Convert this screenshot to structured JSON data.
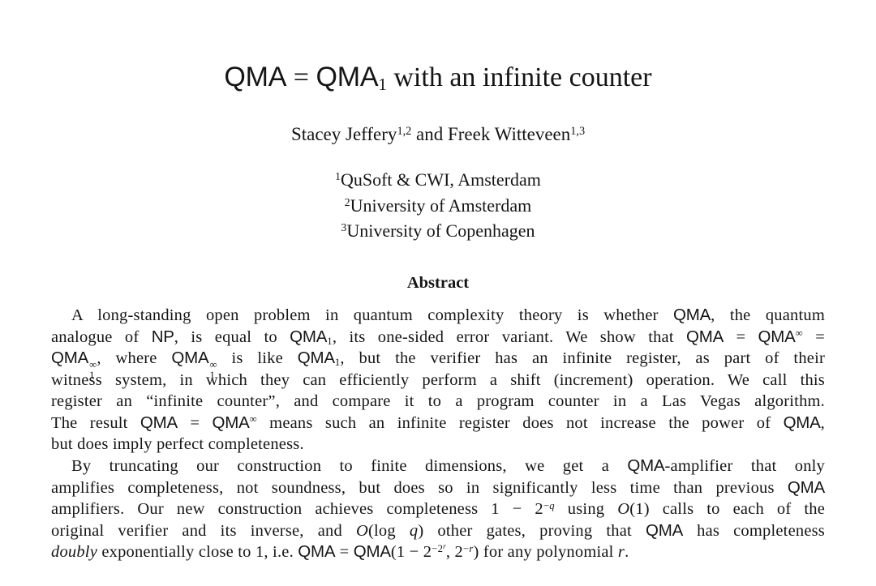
{
  "page": {
    "background": "#ffffff",
    "text_color": "#151515"
  },
  "title": {
    "segments": [
      {
        "t": "QMA",
        "s": "sf"
      },
      {
        "t": " = "
      },
      {
        "t": "QMA",
        "s": "sf"
      },
      {
        "t": "1",
        "s": "sub"
      },
      {
        "t": " with an infinite counter"
      }
    ]
  },
  "authors": {
    "segments": [
      {
        "t": "Stacey Jeffery"
      },
      {
        "t": "1,2",
        "s": "sup"
      },
      {
        "t": " and Freek Witteveen"
      },
      {
        "t": "1,3",
        "s": "sup"
      }
    ]
  },
  "affiliations": {
    "lines": [
      [
        {
          "t": "1",
          "s": "sup"
        },
        {
          "t": "QuSoft & CWI, Amsterdam"
        }
      ],
      [
        {
          "t": "2",
          "s": "sup"
        },
        {
          "t": "University of Amsterdam"
        }
      ],
      [
        {
          "t": "3",
          "s": "sup"
        },
        {
          "t": "University of Copenhagen"
        }
      ]
    ]
  },
  "abstract": {
    "heading": "Abstract",
    "paragraph1": {
      "lines": [
        [
          {
            "t": "A long-standing open problem in quantum complexity theory is whether "
          },
          {
            "t": "QMA",
            "s": "sf"
          },
          {
            "t": ", the quantum"
          }
        ],
        [
          {
            "t": "analogue of "
          },
          {
            "t": "NP",
            "s": "sf"
          },
          {
            "t": ", is equal to "
          },
          {
            "t": "QMA",
            "s": "sf"
          },
          {
            "t": "1",
            "s": "sub"
          },
          {
            "t": ", its one-sided error variant. We show that "
          },
          {
            "t": "QMA",
            "s": "sf"
          },
          {
            "t": " = "
          },
          {
            "t": "QMA",
            "s": "sf"
          },
          {
            "t": "∞",
            "s": "sup"
          },
          {
            "t": " ="
          }
        ],
        [
          {
            "t": "QMA",
            "s": "sf"
          },
          {
            "sup": "∞",
            "sub": "1"
          },
          {
            "t": ", where "
          },
          {
            "t": "QMA",
            "s": "sf"
          },
          {
            "sup": "∞",
            "sub": "1"
          },
          {
            "t": " is like "
          },
          {
            "t": "QMA",
            "s": "sf"
          },
          {
            "t": "1",
            "s": "sub"
          },
          {
            "t": ", but the verifier has an infinite register, as part of their"
          }
        ],
        [
          {
            "t": "witness system, in which they can efficiently perform a shift (increment) operation. We call this"
          }
        ],
        [
          {
            "t": "register an “infinite counter”, and compare it to a program counter in a Las Vegas algorithm."
          }
        ],
        [
          {
            "t": "The result "
          },
          {
            "t": "QMA",
            "s": "sf"
          },
          {
            "t": " = "
          },
          {
            "t": "QMA",
            "s": "sf"
          },
          {
            "t": "∞",
            "s": "sup"
          },
          {
            "t": " means such an infinite register does not increase the power of "
          },
          {
            "t": "QMA",
            "s": "sf"
          },
          {
            "t": ","
          }
        ],
        [
          {
            "t": "but does imply perfect completeness."
          }
        ]
      ]
    },
    "paragraph2": {
      "lines": [
        [
          {
            "t": "By truncating our construction to finite dimensions, we get a "
          },
          {
            "t": "QMA",
            "s": "sf"
          },
          {
            "t": "-amplifier that only"
          }
        ],
        [
          {
            "t": "amplifies completeness, not soundness, but does so in significantly less time than previous "
          },
          {
            "t": "QMA",
            "s": "sf"
          }
        ],
        [
          {
            "t": "amplifiers. Our new construction achieves completeness 1 − 2"
          },
          {
            "t": "−",
            "s": "sup"
          },
          {
            "t": "q",
            "s": "sup it"
          },
          {
            "t": " using "
          },
          {
            "t": "O",
            "s": "it"
          },
          {
            "t": "(1) calls to each of the"
          }
        ],
        [
          {
            "t": "original verifier and its inverse, and "
          },
          {
            "t": "O",
            "s": "it"
          },
          {
            "t": "(log "
          },
          {
            "t": "q",
            "s": "it"
          },
          {
            "t": ") other gates, proving that "
          },
          {
            "t": "QMA",
            "s": "sf"
          },
          {
            "t": " has completeness"
          }
        ],
        [
          {
            "t": "doubly",
            "s": "it"
          },
          {
            "t": " exponentially close to 1, i.e. "
          },
          {
            "t": "QMA",
            "s": "sf"
          },
          {
            "t": " = "
          },
          {
            "t": "QMA",
            "s": "sf"
          },
          {
            "t": "(1 − 2"
          },
          {
            "t": "−2",
            "s": "sup"
          },
          {
            "t": "r",
            "s": "sup2 it"
          },
          {
            "t": ", 2"
          },
          {
            "t": "−",
            "s": "sup"
          },
          {
            "t": "r",
            "s": "sup it"
          },
          {
            "t": ") for any polynomial "
          },
          {
            "t": "r",
            "s": "it"
          },
          {
            "t": "."
          }
        ]
      ]
    }
  }
}
